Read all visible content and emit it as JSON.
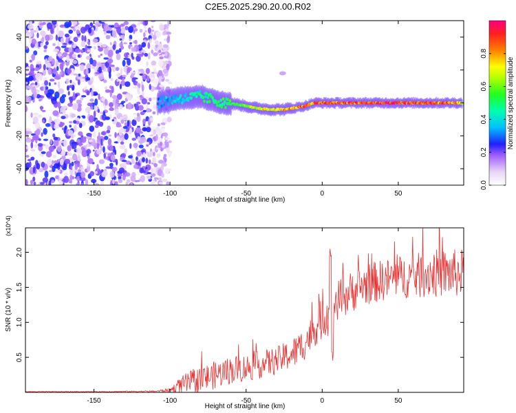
{
  "title": "C2E5.2025.290.20.00.R02",
  "chart_data": [
    {
      "type": "heatmap",
      "xlabel": "Height of straight line (km)",
      "ylabel": "Frequency (Hz)",
      "xlim": [
        -195,
        93
      ],
      "ylim": [
        -50,
        50
      ],
      "xticks": [
        -150,
        -100,
        -50,
        0,
        50
      ],
      "yticks": [
        -40,
        -20,
        0,
        20,
        40
      ],
      "colorbar": {
        "label": "Normalized spectral amplitude",
        "range": [
          0,
          1
        ],
        "ticks": [
          0.0,
          0.2,
          0.4,
          0.6,
          0.8
        ]
      },
      "ridge": {
        "x": [
          -108,
          -100,
          -90,
          -80,
          -72,
          -65,
          -55,
          -45,
          -35,
          -25,
          -18,
          -12,
          -5,
          0,
          10,
          20,
          30,
          40,
          50,
          60,
          70,
          80,
          92
        ],
        "freq": [
          0,
          2,
          3,
          4,
          2,
          0,
          -1,
          -3,
          -4,
          -4,
          -3,
          -2,
          0,
          0,
          0,
          0,
          0,
          0,
          0,
          0,
          0,
          0,
          0
        ],
        "amp": [
          0.35,
          0.4,
          0.45,
          0.5,
          0.55,
          0.55,
          0.6,
          0.75,
          0.8,
          0.85,
          0.9,
          0.9,
          0.95,
          0.95,
          0.95,
          0.97,
          0.97,
          0.97,
          0.97,
          0.97,
          0.95,
          0.9,
          0.85
        ]
      },
      "noise_region": [
        -195,
        -108
      ]
    },
    {
      "type": "line",
      "xlabel": "Height of straight line (km)",
      "ylabel": "SNR (10 * v/v)",
      "y_multiplier": "(x10^4)",
      "xlim": [
        -195,
        93
      ],
      "ylim": [
        0,
        2.35
      ],
      "xticks": [
        -150,
        -100,
        -50,
        0,
        50
      ],
      "yticks": [
        0.5,
        1.0,
        1.5,
        2.0
      ],
      "ytick_labels": [
        "0.5",
        "1.0",
        "1.5",
        "2.0"
      ],
      "series": [
        {
          "name": "SNR",
          "color": "#e83030",
          "x": [
            -195,
            -150,
            -110,
            -100,
            -95,
            -90,
            -80,
            -70,
            -60,
            -50,
            -40,
            -30,
            -20,
            -15,
            -10,
            -5,
            0,
            3,
            6,
            10,
            20,
            30,
            40,
            50,
            60,
            70,
            80,
            92
          ],
          "mean": [
            0.01,
            0.01,
            0.015,
            0.03,
            0.08,
            0.12,
            0.18,
            0.25,
            0.32,
            0.35,
            0.4,
            0.45,
            0.55,
            0.62,
            0.75,
            0.9,
            1.05,
            1.15,
            1.2,
            1.3,
            1.45,
            1.55,
            1.6,
            1.65,
            1.65,
            1.7,
            1.7,
            1.7
          ],
          "spread": [
            0.005,
            0.005,
            0.01,
            0.03,
            0.1,
            0.15,
            0.2,
            0.2,
            0.2,
            0.2,
            0.2,
            0.2,
            0.22,
            0.25,
            0.25,
            0.25,
            0.3,
            0.35,
            0.4,
            0.3,
            0.3,
            0.3,
            0.3,
            0.3,
            0.32,
            0.35,
            0.35,
            0.35
          ]
        }
      ]
    }
  ]
}
